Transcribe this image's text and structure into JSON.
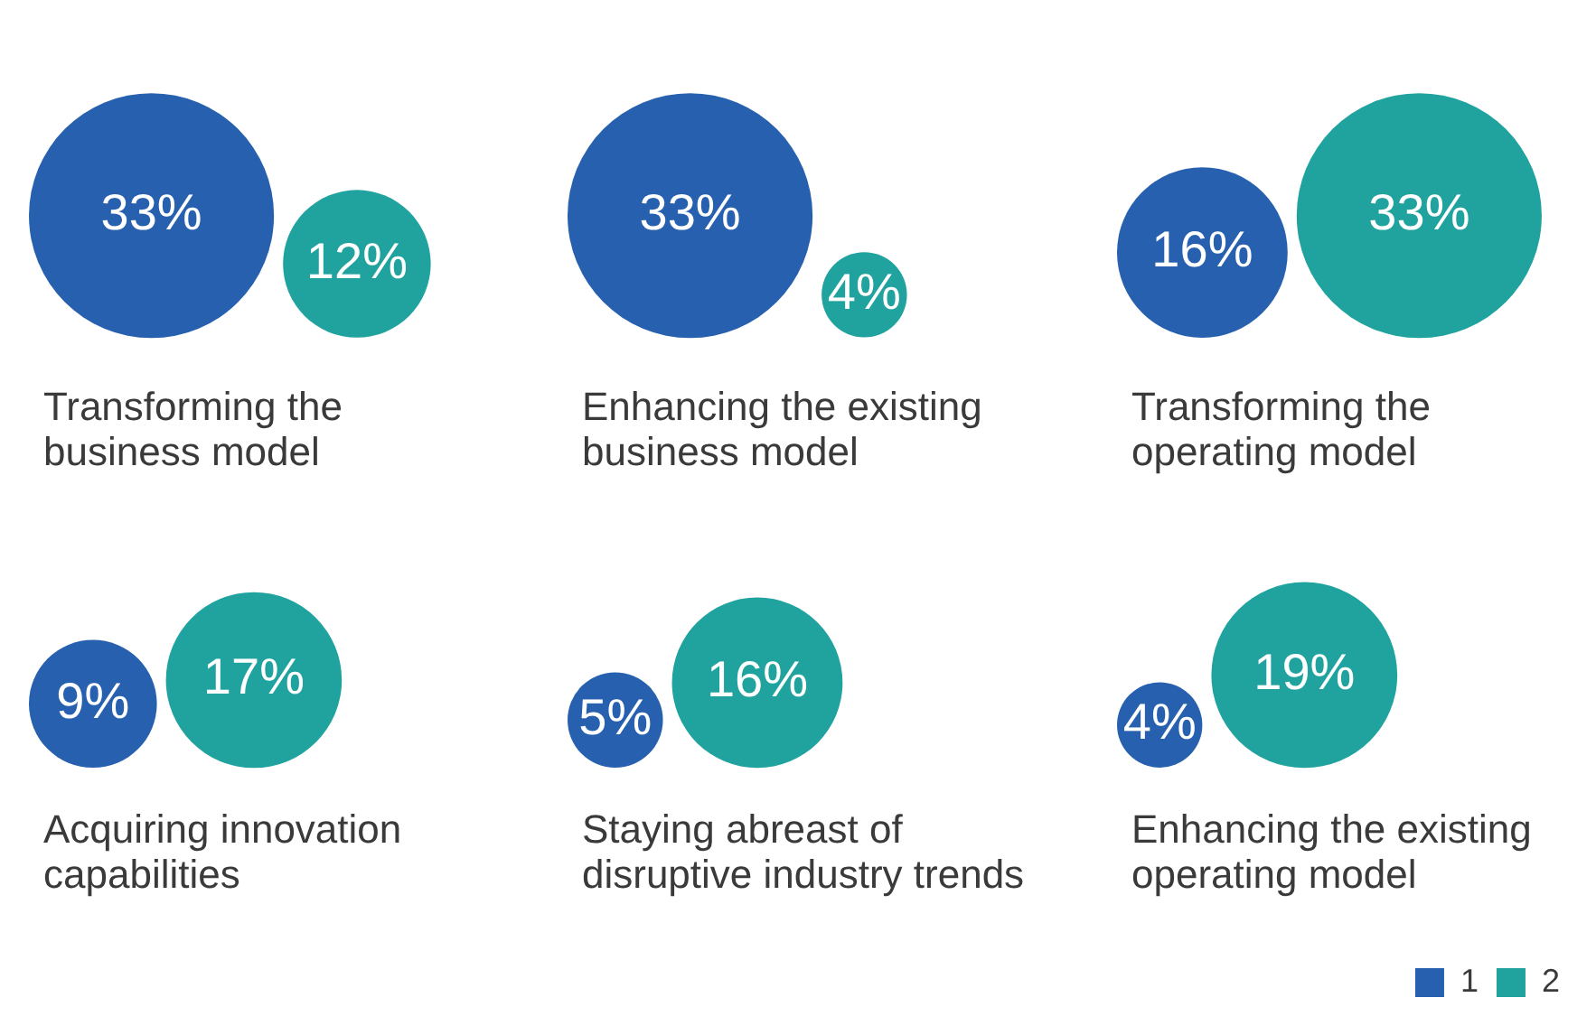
{
  "chart_data": {
    "type": "other",
    "categories": [
      "Transforming the business model",
      "Enhancing the existing business model",
      "Transforming the operating model",
      "Acquiring innovation capabilities",
      "Staying abreast of disruptive industry trends",
      "Enhancing the existing operating model"
    ],
    "series": [
      {
        "name": "1",
        "color": "#2660ae",
        "values": [
          33,
          33,
          16,
          9,
          5,
          4
        ],
        "value_labels": [
          "33%",
          "33%",
          "16%",
          "9%",
          "5%",
          "4%"
        ]
      },
      {
        "name": "2",
        "color": "#20a39e",
        "values": [
          12,
          4,
          33,
          17,
          16,
          19
        ],
        "value_labels": [
          "12%",
          "4%",
          "33%",
          "17%",
          "16%",
          "19%"
        ]
      }
    ],
    "legend": "bottom right"
  }
}
